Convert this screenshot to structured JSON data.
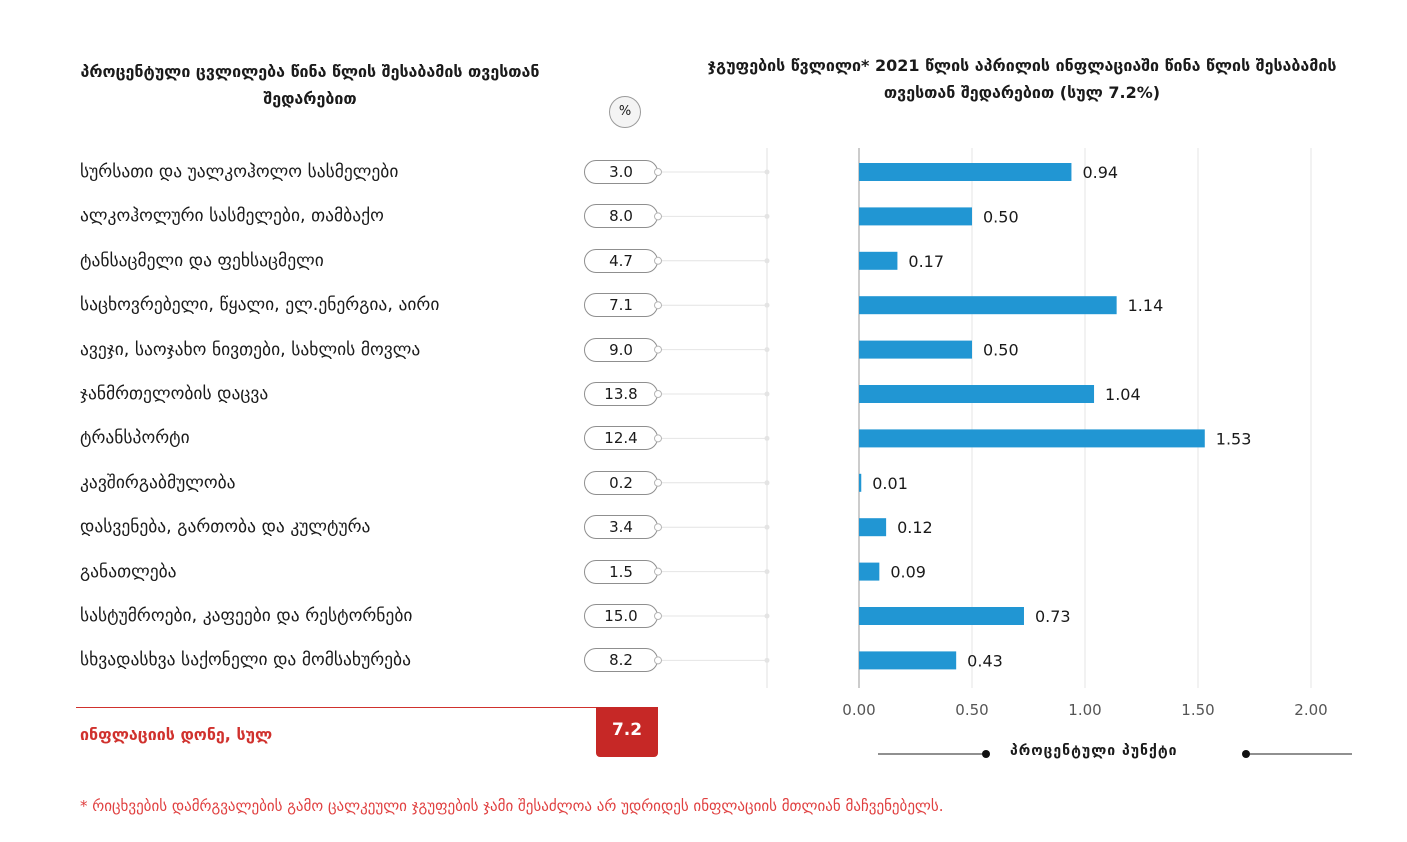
{
  "left_title": "პროცენტული ცვლილება წინა წლის შესაბამის თვესთან შედარებით",
  "right_title": "ჯგუფების წვლილი* 2021 წლის აპრილის ინფლაციაში წინა წლის შესაბამის თვესთან შედარებით (სულ 7.2%)",
  "pct_badge": "%",
  "categories": [
    "სურსათი და უალკოჰოლო სასმელები",
    "ალკოჰოლური სასმელები, თამბაქო",
    "ტანსაცმელი და ფეხსაცმელი",
    "საცხოვრებელი, წყალი, ელ.ენერგია, აირი",
    "ავეჯი, საოჯახო ნივთები, სახლის მოვლა",
    "ჯანმრთელობის დაცვა",
    "ტრანსპორტი",
    "კავშირგაბმულობა",
    "დასვენება, გართობა და კულტურა",
    "განათლება",
    "სასტუმროები, კაფეები და რესტორნები",
    "სხვადასხვა საქონელი და მომსახურება"
  ],
  "percent_change": [
    "3.0",
    "8.0",
    "4.7",
    "7.1",
    "9.0",
    "13.8",
    "12.4",
    "0.2",
    "3.4",
    "1.5",
    "15.0",
    "8.2"
  ],
  "total_label": "ინფლაციის დონე, სულ",
  "total_value": "7.2",
  "x_axis_label": "პროცენტული პუნქტი",
  "footnote": "* რიცხვების დამრგვალების გამო ცალკეული ჯგუფების ჯამი შესაძლოა არ უდრიდეს ინფლაციის მთლიან მაჩვენებელს.",
  "colors": {
    "bar": "#2196d3",
    "accent": "#c62826"
  },
  "chart_data": {
    "type": "bar",
    "orientation": "horizontal",
    "categories": [
      "სურსათი და უალკოჰოლო სასმელები",
      "ალკოჰოლური სასმელები, თამბაქო",
      "ტანსაცმელი და ფეხსაცმელი",
      "საცხოვრებელი, წყალი, ელ.ენერგია, აირი",
      "ავეჯი, საოჯახო ნივთები, სახლის მოვლა",
      "ჯანმრთელობის დაცვა",
      "ტრანსპორტი",
      "კავშირგაბმულობა",
      "დასვენება, გართობა და კულტურა",
      "განათლება",
      "სასტუმროები, კაფეები და რესტორნები",
      "სხვადასხვა საქონელი და მომსახურება"
    ],
    "values": [
      0.94,
      0.5,
      0.17,
      1.14,
      0.5,
      1.04,
      1.53,
      0.01,
      0.12,
      0.09,
      0.73,
      0.43
    ],
    "value_labels": [
      "0.94",
      "0.50",
      "0.17",
      "1.14",
      "0.50",
      "1.04",
      "1.53",
      "0.01",
      "0.12",
      "0.09",
      "0.73",
      "0.43"
    ],
    "xlim": [
      0,
      2.0
    ],
    "xticks": [
      0,
      0.5,
      1.0,
      1.5,
      2.0
    ],
    "xtick_labels": [
      "0.00",
      "0.50",
      "1.00",
      "1.50",
      "2.00"
    ],
    "xlabel": "პროცენტული პუნქტი",
    "grid": true
  }
}
